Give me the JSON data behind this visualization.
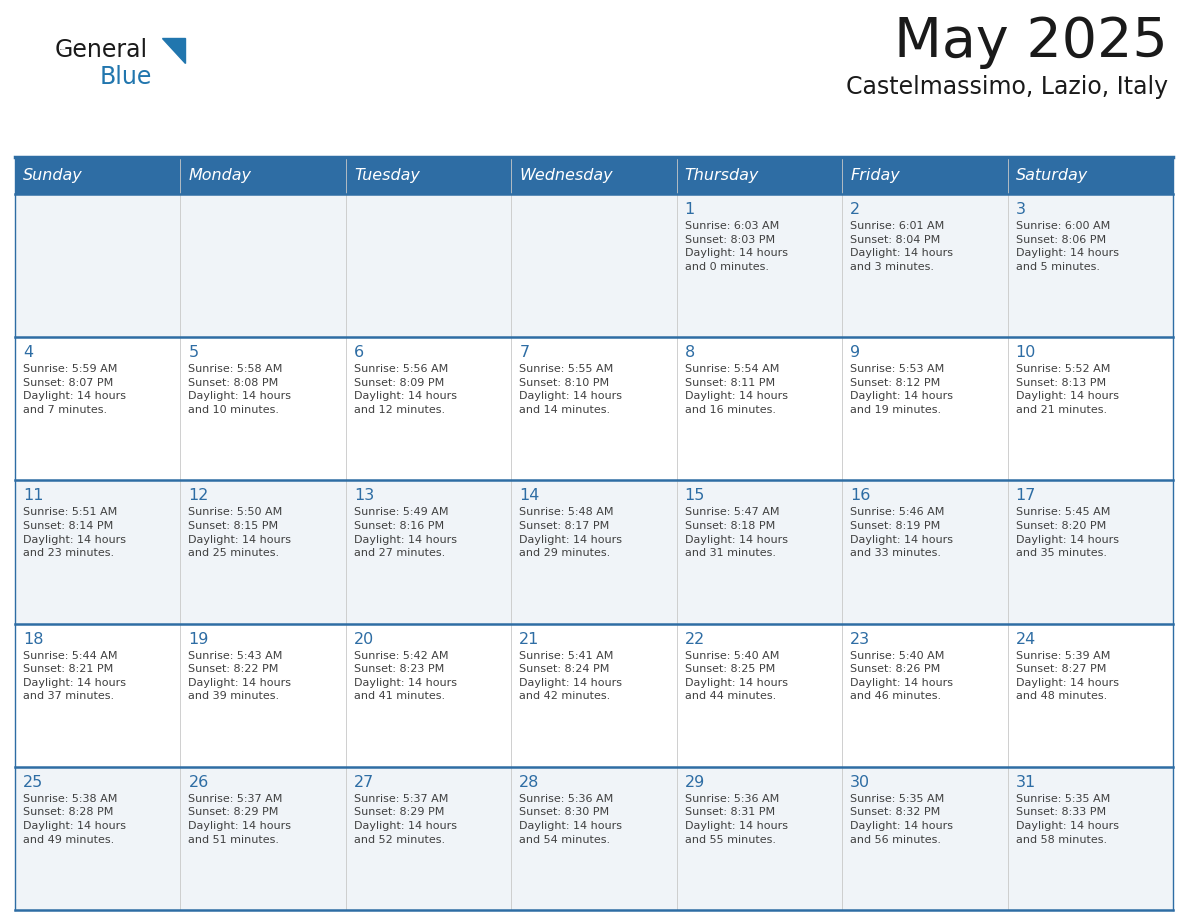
{
  "title": "May 2025",
  "subtitle": "Castelmassimo, Lazio, Italy",
  "header_bg": "#2E6DA4",
  "header_text_color": "#FFFFFF",
  "days_of_week": [
    "Sunday",
    "Monday",
    "Tuesday",
    "Wednesday",
    "Thursday",
    "Friday",
    "Saturday"
  ],
  "row_bg_odd": "#F0F4F8",
  "row_bg_even": "#FFFFFF",
  "cell_border_color": "#2E6DA4",
  "day_number_color": "#2E6DA4",
  "info_text_color": "#404040",
  "background_color": "#FFFFFF",
  "weeks": [
    [
      {
        "day": "",
        "info": ""
      },
      {
        "day": "",
        "info": ""
      },
      {
        "day": "",
        "info": ""
      },
      {
        "day": "",
        "info": ""
      },
      {
        "day": "1",
        "info": "Sunrise: 6:03 AM\nSunset: 8:03 PM\nDaylight: 14 hours\nand 0 minutes."
      },
      {
        "day": "2",
        "info": "Sunrise: 6:01 AM\nSunset: 8:04 PM\nDaylight: 14 hours\nand 3 minutes."
      },
      {
        "day": "3",
        "info": "Sunrise: 6:00 AM\nSunset: 8:06 PM\nDaylight: 14 hours\nand 5 minutes."
      }
    ],
    [
      {
        "day": "4",
        "info": "Sunrise: 5:59 AM\nSunset: 8:07 PM\nDaylight: 14 hours\nand 7 minutes."
      },
      {
        "day": "5",
        "info": "Sunrise: 5:58 AM\nSunset: 8:08 PM\nDaylight: 14 hours\nand 10 minutes."
      },
      {
        "day": "6",
        "info": "Sunrise: 5:56 AM\nSunset: 8:09 PM\nDaylight: 14 hours\nand 12 minutes."
      },
      {
        "day": "7",
        "info": "Sunrise: 5:55 AM\nSunset: 8:10 PM\nDaylight: 14 hours\nand 14 minutes."
      },
      {
        "day": "8",
        "info": "Sunrise: 5:54 AM\nSunset: 8:11 PM\nDaylight: 14 hours\nand 16 minutes."
      },
      {
        "day": "9",
        "info": "Sunrise: 5:53 AM\nSunset: 8:12 PM\nDaylight: 14 hours\nand 19 minutes."
      },
      {
        "day": "10",
        "info": "Sunrise: 5:52 AM\nSunset: 8:13 PM\nDaylight: 14 hours\nand 21 minutes."
      }
    ],
    [
      {
        "day": "11",
        "info": "Sunrise: 5:51 AM\nSunset: 8:14 PM\nDaylight: 14 hours\nand 23 minutes."
      },
      {
        "day": "12",
        "info": "Sunrise: 5:50 AM\nSunset: 8:15 PM\nDaylight: 14 hours\nand 25 minutes."
      },
      {
        "day": "13",
        "info": "Sunrise: 5:49 AM\nSunset: 8:16 PM\nDaylight: 14 hours\nand 27 minutes."
      },
      {
        "day": "14",
        "info": "Sunrise: 5:48 AM\nSunset: 8:17 PM\nDaylight: 14 hours\nand 29 minutes."
      },
      {
        "day": "15",
        "info": "Sunrise: 5:47 AM\nSunset: 8:18 PM\nDaylight: 14 hours\nand 31 minutes."
      },
      {
        "day": "16",
        "info": "Sunrise: 5:46 AM\nSunset: 8:19 PM\nDaylight: 14 hours\nand 33 minutes."
      },
      {
        "day": "17",
        "info": "Sunrise: 5:45 AM\nSunset: 8:20 PM\nDaylight: 14 hours\nand 35 minutes."
      }
    ],
    [
      {
        "day": "18",
        "info": "Sunrise: 5:44 AM\nSunset: 8:21 PM\nDaylight: 14 hours\nand 37 minutes."
      },
      {
        "day": "19",
        "info": "Sunrise: 5:43 AM\nSunset: 8:22 PM\nDaylight: 14 hours\nand 39 minutes."
      },
      {
        "day": "20",
        "info": "Sunrise: 5:42 AM\nSunset: 8:23 PM\nDaylight: 14 hours\nand 41 minutes."
      },
      {
        "day": "21",
        "info": "Sunrise: 5:41 AM\nSunset: 8:24 PM\nDaylight: 14 hours\nand 42 minutes."
      },
      {
        "day": "22",
        "info": "Sunrise: 5:40 AM\nSunset: 8:25 PM\nDaylight: 14 hours\nand 44 minutes."
      },
      {
        "day": "23",
        "info": "Sunrise: 5:40 AM\nSunset: 8:26 PM\nDaylight: 14 hours\nand 46 minutes."
      },
      {
        "day": "24",
        "info": "Sunrise: 5:39 AM\nSunset: 8:27 PM\nDaylight: 14 hours\nand 48 minutes."
      }
    ],
    [
      {
        "day": "25",
        "info": "Sunrise: 5:38 AM\nSunset: 8:28 PM\nDaylight: 14 hours\nand 49 minutes."
      },
      {
        "day": "26",
        "info": "Sunrise: 5:37 AM\nSunset: 8:29 PM\nDaylight: 14 hours\nand 51 minutes."
      },
      {
        "day": "27",
        "info": "Sunrise: 5:37 AM\nSunset: 8:29 PM\nDaylight: 14 hours\nand 52 minutes."
      },
      {
        "day": "28",
        "info": "Sunrise: 5:36 AM\nSunset: 8:30 PM\nDaylight: 14 hours\nand 54 minutes."
      },
      {
        "day": "29",
        "info": "Sunrise: 5:36 AM\nSunset: 8:31 PM\nDaylight: 14 hours\nand 55 minutes."
      },
      {
        "day": "30",
        "info": "Sunrise: 5:35 AM\nSunset: 8:32 PM\nDaylight: 14 hours\nand 56 minutes."
      },
      {
        "day": "31",
        "info": "Sunrise: 5:35 AM\nSunset: 8:33 PM\nDaylight: 14 hours\nand 58 minutes."
      }
    ]
  ],
  "logo_color_general": "#1a1a1a",
  "logo_color_blue": "#2176AE",
  "logo_triangle_color": "#2176AE"
}
